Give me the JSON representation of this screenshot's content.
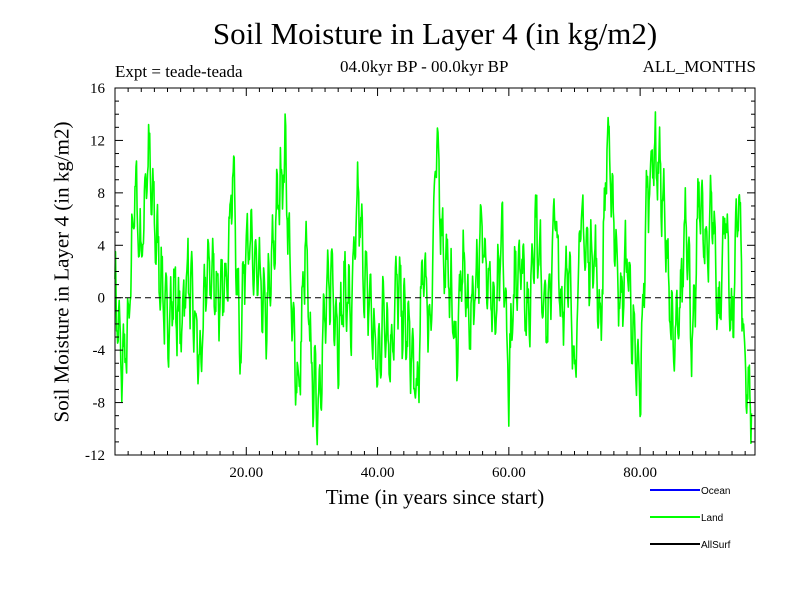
{
  "chart_data": {
    "type": "line",
    "title": "Soil Moisture in Layer 4 (in kg/m2)",
    "experiment": "Expt = teade-teada",
    "period": "04.0kyr BP - 00.0kyr BP",
    "months": "ALL_MONTHS",
    "xlabel": "Time (in years since start)",
    "ylabel": "Soil Moisture in Layer 4 (in kg/m2)",
    "xlim": [
      0,
      97.5
    ],
    "ylim": [
      -12,
      16
    ],
    "x_ticks": [
      {
        "value": 20,
        "label": "20.00"
      },
      {
        "value": 40,
        "label": "40.00"
      },
      {
        "value": 60,
        "label": "60.00"
      },
      {
        "value": 80,
        "label": "80.00"
      }
    ],
    "y_ticks": [
      {
        "value": -12,
        "label": "-12"
      },
      {
        "value": -8,
        "label": "-8"
      },
      {
        "value": -4,
        "label": "-4"
      },
      {
        "value": 0,
        "label": "0"
      },
      {
        "value": 4,
        "label": "4"
      },
      {
        "value": 8,
        "label": "8"
      },
      {
        "value": 12,
        "label": "12"
      },
      {
        "value": 16,
        "label": "16"
      }
    ],
    "zero_line": true,
    "legend_position": "bottom-right",
    "series": [
      {
        "name": "Ocean",
        "color": "#0000ff",
        "values": []
      },
      {
        "name": "Land",
        "color": "#00ff00",
        "x": [
          0,
          1,
          2,
          3,
          4,
          5,
          6,
          7,
          8,
          9,
          10,
          11,
          12,
          13,
          14,
          15,
          16,
          17,
          18,
          19,
          20,
          21,
          22,
          23,
          24,
          25,
          26,
          27,
          28,
          29,
          30,
          31,
          32,
          33,
          34,
          35,
          36,
          37,
          38,
          39,
          40,
          41,
          42,
          43,
          44,
          45,
          46,
          47,
          48,
          49,
          50,
          51,
          52,
          53,
          54,
          55,
          56,
          57,
          58,
          59,
          60,
          61,
          62,
          63,
          64,
          65,
          66,
          67,
          68,
          69,
          70,
          71,
          72,
          73,
          74,
          75,
          76,
          77,
          78,
          79,
          80,
          81,
          82,
          83,
          84,
          85,
          86,
          87,
          88,
          89,
          90,
          91,
          92,
          93,
          94,
          95,
          96,
          97
        ],
        "values": [
          0.8,
          -5.2,
          -3.1,
          8.7,
          3.0,
          11.2,
          6.0,
          1.5,
          -2.2,
          0.6,
          -2.5,
          2.1,
          -1.2,
          -5.5,
          2.3,
          1.7,
          -0.5,
          1.8,
          9.9,
          -4.0,
          5.1,
          2.9,
          1.2,
          -1.8,
          3.0,
          8.3,
          10.7,
          -2.0,
          -7.3,
          4.2,
          -6.0,
          -8.0,
          -1.2,
          2.0,
          -3.5,
          1.1,
          -1.5,
          7.9,
          1.5,
          -0.8,
          -5.5,
          -0.6,
          -4.5,
          1.3,
          -1.8,
          -3.5,
          -8.0,
          3.2,
          -2.8,
          12.0,
          3.5,
          1.2,
          -4.3,
          3.0,
          -2.0,
          1.5,
          5.2,
          1.0,
          -1.6,
          4.8,
          -6.5,
          2.1,
          3.0,
          -2.2,
          6.1,
          1.5,
          -2.2,
          7.2,
          -1.7,
          3.2,
          -5.8,
          6.2,
          2.9,
          3.5,
          -2.2,
          12.5,
          6.0,
          -1.0,
          3.4,
          -3.5,
          -7.2,
          7.5,
          11.1,
          9.8,
          4.2,
          -4.0,
          -1.5,
          7.0,
          -4.5,
          8.5,
          3.0,
          7.5,
          -2.2,
          7.2,
          -3.0,
          8.5,
          -6.5,
          -8.3
        ]
      },
      {
        "name": "AllSurf",
        "color": "#000000",
        "values": []
      }
    ]
  }
}
